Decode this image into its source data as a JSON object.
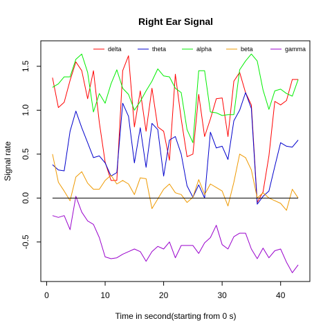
{
  "chart_data": {
    "type": "line",
    "title": "Right Ear Signal",
    "xlabel": "Time in second(starting from 0 s)",
    "ylabel": "Signal rate",
    "xlim": [
      -1,
      45
    ],
    "ylim": [
      -0.95,
      1.79
    ],
    "x_ticks": [
      0,
      10,
      20,
      30,
      40
    ],
    "y_ticks": [
      -0.5,
      0.0,
      0.5,
      1.0,
      1.5
    ],
    "y_tick_labels": [
      "-0.5",
      "0.0",
      "0.5",
      "1.0",
      "1.5"
    ],
    "grid": false,
    "legend_position": "top",
    "reference_line": {
      "y": 0,
      "x_from": 1,
      "x_to": 43,
      "color": "#000000"
    },
    "x": [
      1,
      2,
      3,
      4,
      5,
      6,
      7,
      8,
      9,
      10,
      11,
      12,
      13,
      14,
      15,
      16,
      17,
      18,
      19,
      20,
      21,
      22,
      23,
      24,
      25,
      26,
      27,
      28,
      29,
      30,
      31,
      32,
      33,
      34,
      35,
      36,
      37,
      38,
      39,
      40,
      41,
      42,
      43
    ],
    "series": [
      {
        "name": "delta",
        "color": "#ff0000",
        "values": [
          1.37,
          1.03,
          1.09,
          1.34,
          1.55,
          1.45,
          1.13,
          1.45,
          0.86,
          0.41,
          0.2,
          0.2,
          1.45,
          1.62,
          0.81,
          1.22,
          0.76,
          1.25,
          0.81,
          0.76,
          0.43,
          1.41,
          0.9,
          0.47,
          0.5,
          1.18,
          0.7,
          0.9,
          1.13,
          1.14,
          0.7,
          1.33,
          1.43,
          1.2,
          1.06,
          -0.05,
          0.07,
          0.48,
          1.1,
          1.06,
          1.11,
          1.35,
          1.35
        ]
      },
      {
        "name": "theta",
        "color": "#0000cc",
        "values": [
          0.38,
          0.32,
          0.31,
          0.76,
          0.99,
          0.8,
          0.63,
          0.46,
          0.48,
          0.4,
          0.25,
          0.29,
          1.08,
          0.93,
          0.4,
          0.8,
          0.35,
          0.85,
          0.78,
          0.25,
          0.66,
          0.7,
          0.5,
          0.14,
          0.01,
          0.15,
          0.0,
          0.75,
          0.57,
          0.59,
          0.44,
          0.88,
          1.0,
          1.2,
          1.02,
          -0.07,
          0.02,
          0.08,
          0.36,
          0.63,
          0.59,
          0.58,
          0.66
        ]
      },
      {
        "name": "alpha",
        "color": "#00ee00",
        "values": [
          1.26,
          1.3,
          1.38,
          1.38,
          1.58,
          1.64,
          1.43,
          0.98,
          1.19,
          1.08,
          1.3,
          1.46,
          1.25,
          1.18,
          1.0,
          1.1,
          1.22,
          1.33,
          1.47,
          1.39,
          1.38,
          1.25,
          1.2,
          0.78,
          0.63,
          1.45,
          1.45,
          0.98,
          0.97,
          0.94,
          0.95,
          0.95,
          1.46,
          1.56,
          1.64,
          1.56,
          1.23,
          1.01,
          1.22,
          1.24,
          1.19,
          1.16,
          1.35
        ]
      },
      {
        "name": "beta",
        "color": "#ee9900",
        "values": [
          0.5,
          0.18,
          0.08,
          -0.03,
          0.24,
          0.3,
          0.17,
          0.1,
          0.1,
          0.2,
          0.26,
          0.16,
          0.2,
          0.16,
          0.04,
          0.23,
          0.22,
          -0.12,
          -0.01,
          0.1,
          0.16,
          0.06,
          0.04,
          -0.05,
          0.01,
          0.21,
          0.04,
          0.16,
          0.12,
          0.08,
          -0.09,
          0.18,
          0.5,
          0.46,
          0.32,
          0.0,
          0.06,
          0.0,
          -0.03,
          -0.06,
          -0.14,
          0.1,
          0.0
        ]
      },
      {
        "name": "gamma",
        "color": "#9900cc",
        "values": [
          -0.2,
          -0.22,
          -0.2,
          -0.36,
          0.02,
          -0.16,
          -0.26,
          -0.3,
          -0.45,
          -0.67,
          -0.69,
          -0.68,
          -0.64,
          -0.61,
          -0.58,
          -0.61,
          -0.72,
          -0.61,
          -0.55,
          -0.58,
          -0.5,
          -0.68,
          -0.54,
          -0.54,
          -0.54,
          -0.63,
          -0.51,
          -0.45,
          -0.31,
          -0.53,
          -0.58,
          -0.44,
          -0.4,
          -0.4,
          -0.58,
          -0.69,
          -0.57,
          -0.68,
          -0.6,
          -0.58,
          -0.73,
          -0.85,
          -0.76
        ]
      }
    ]
  }
}
